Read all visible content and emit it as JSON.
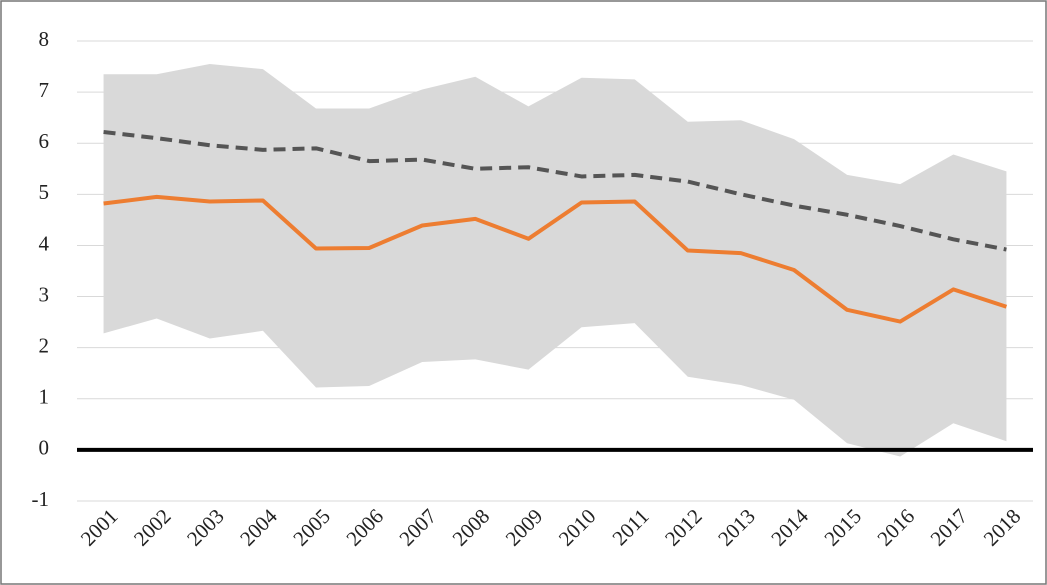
{
  "chart_data": {
    "type": "line",
    "categories": [
      "2001",
      "2002",
      "2003",
      "2004",
      "2005",
      "2006",
      "2007",
      "2008",
      "2009",
      "2010",
      "2011",
      "2012",
      "2013",
      "2014",
      "2015",
      "2016",
      "2017",
      "2018"
    ],
    "band": {
      "color": "#d9d9d9",
      "upper": [
        7.35,
        7.35,
        7.55,
        7.45,
        6.68,
        6.68,
        7.05,
        7.3,
        6.72,
        7.28,
        7.25,
        6.42,
        6.45,
        6.08,
        5.38,
        5.2,
        5.78,
        5.45
      ],
      "lower": [
        2.28,
        2.57,
        2.18,
        2.33,
        1.22,
        1.25,
        1.72,
        1.77,
        1.57,
        2.4,
        2.48,
        1.43,
        1.27,
        0.98,
        0.13,
        -0.13,
        0.52,
        0.17
      ]
    },
    "series": [
      {
        "color": "#ed7d31",
        "dashed": false,
        "values": [
          4.82,
          4.95,
          4.86,
          4.88,
          3.94,
          3.95,
          4.39,
          4.52,
          4.13,
          4.84,
          4.86,
          3.9,
          3.85,
          3.52,
          2.74,
          2.51,
          3.14,
          2.8
        ]
      },
      {
        "color": "#555555",
        "dashed": true,
        "values": [
          6.22,
          6.1,
          5.96,
          5.87,
          5.9,
          5.65,
          5.68,
          5.5,
          5.53,
          5.35,
          5.38,
          5.25,
          5.0,
          4.78,
          4.6,
          4.38,
          4.12,
          3.92
        ]
      }
    ],
    "ylim": [
      -1,
      8
    ],
    "yticks": [
      -1,
      0,
      1,
      2,
      3,
      4,
      5,
      6,
      7,
      8
    ],
    "grid": true,
    "zero_line": true
  }
}
